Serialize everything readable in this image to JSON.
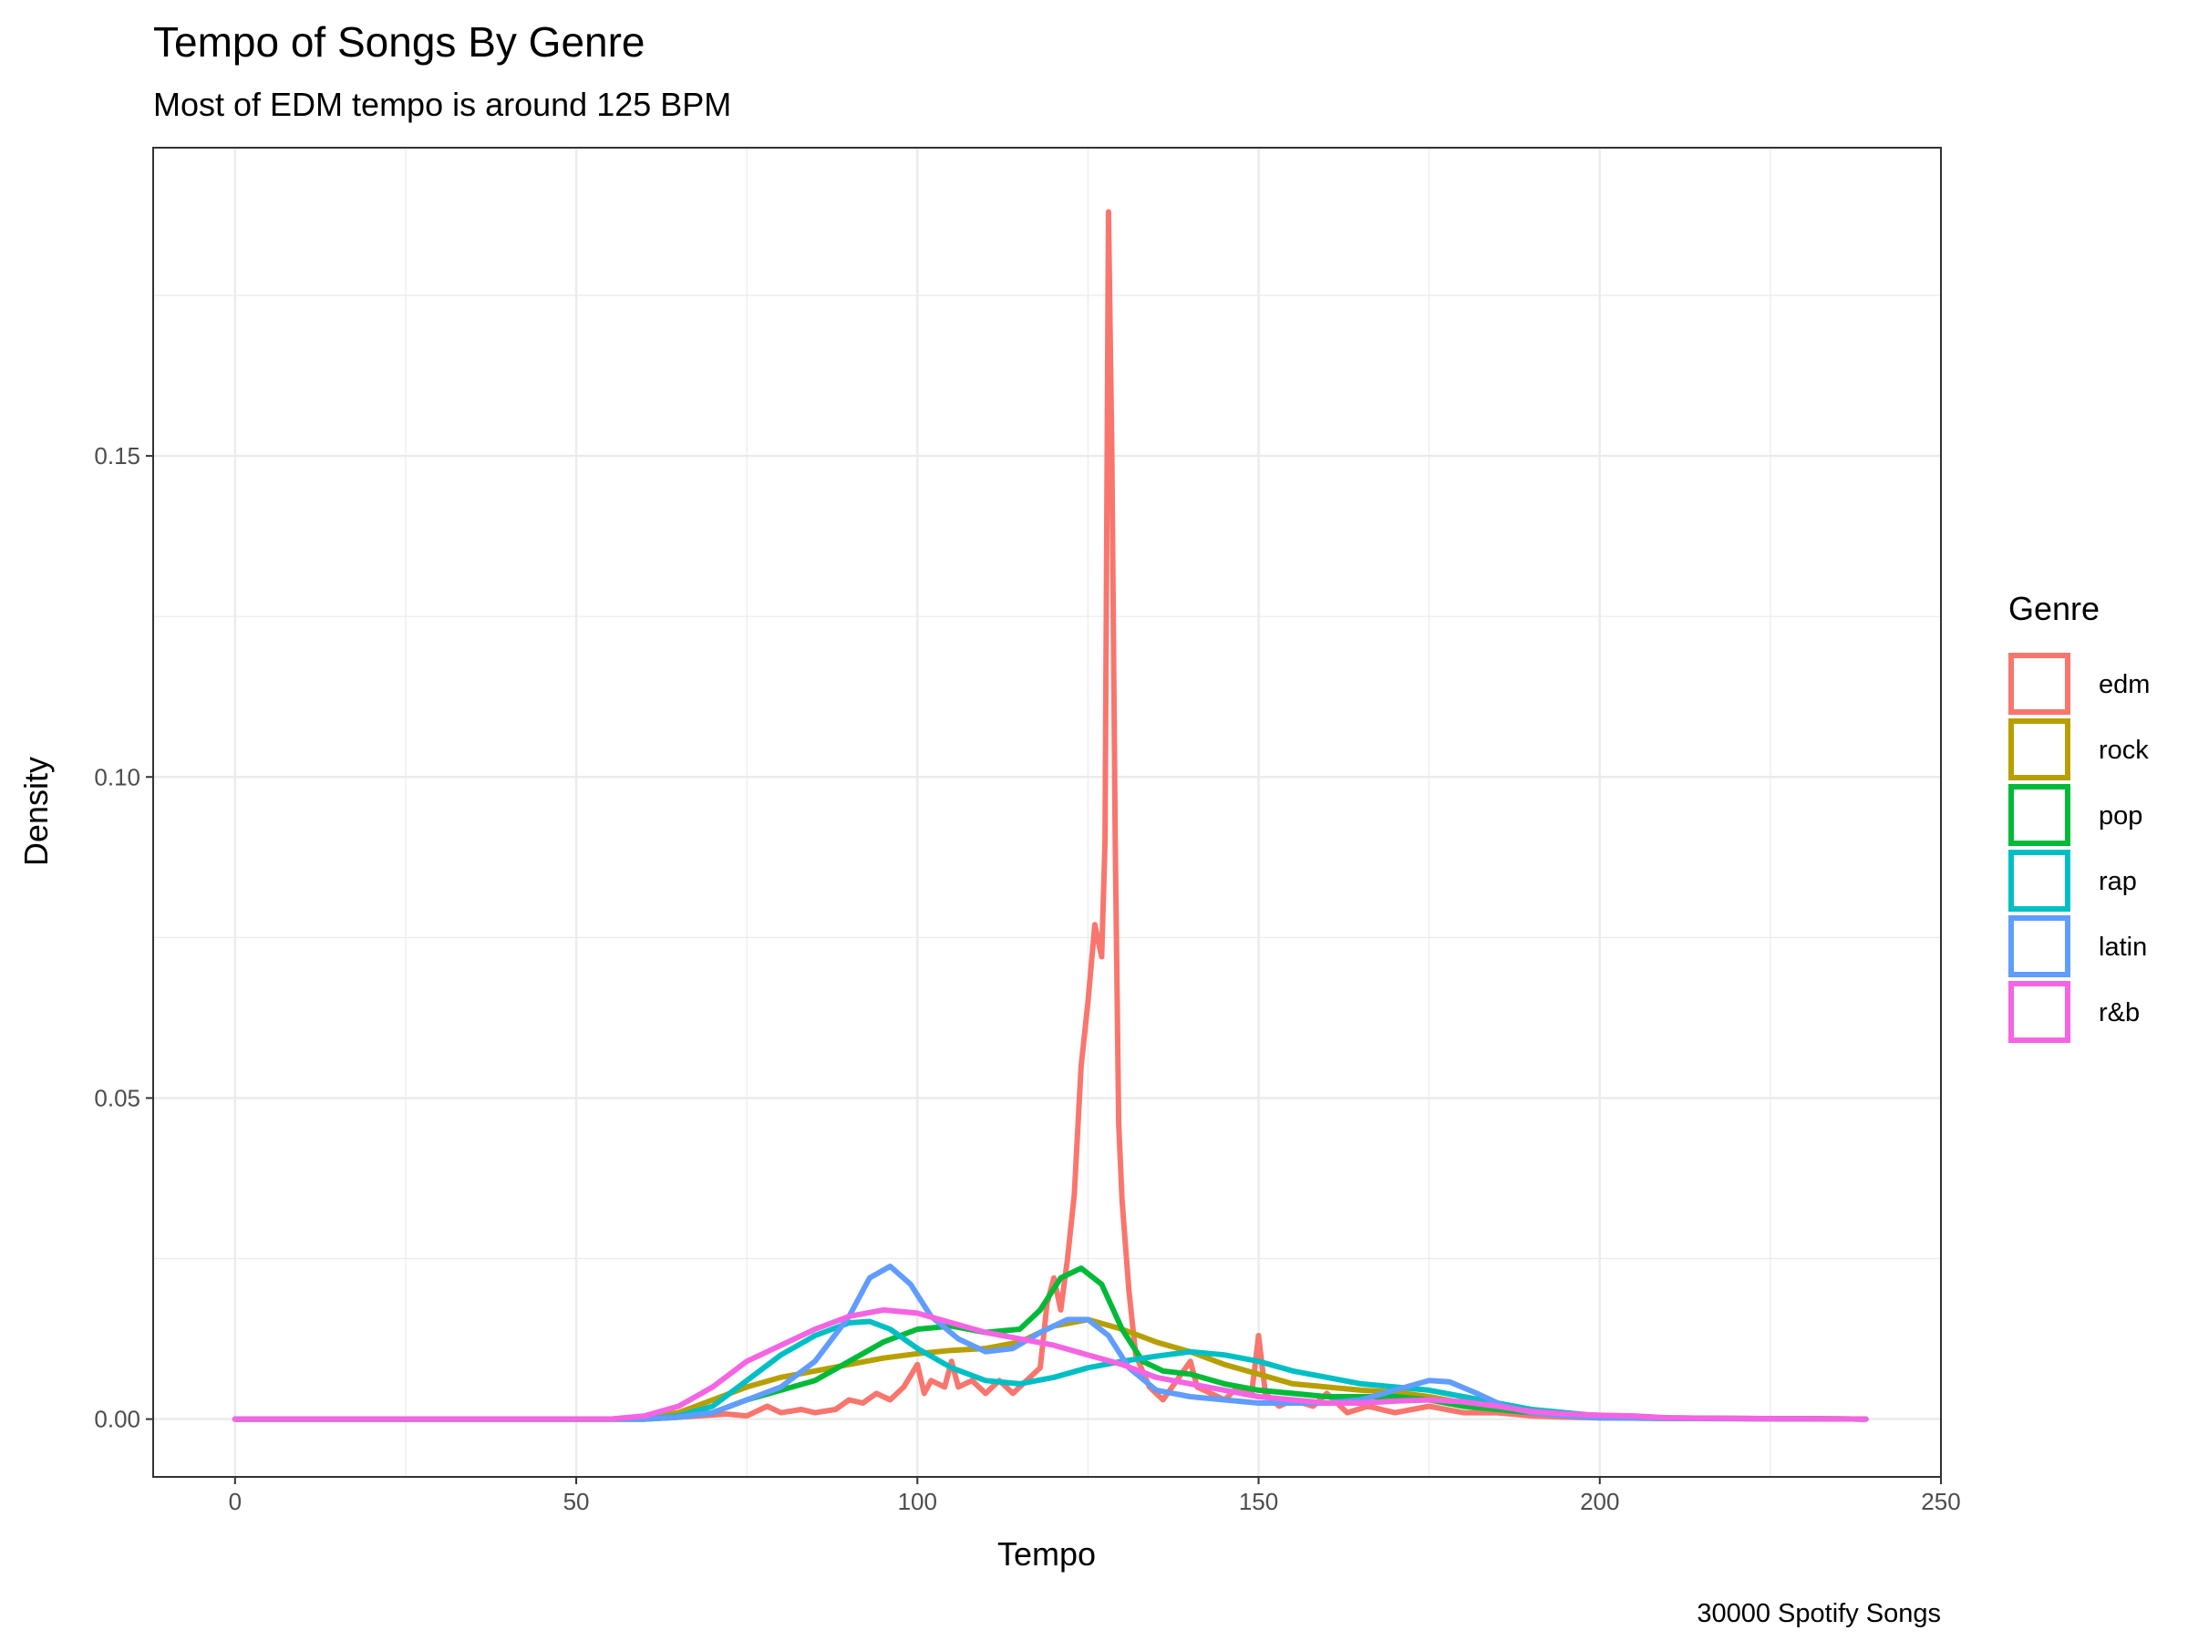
{
  "chart_data": {
    "type": "line",
    "title": "Tempo of Songs By Genre",
    "subtitle": "Most of EDM tempo is around 125 BPM",
    "xlabel": "Tempo",
    "ylabel": "Density",
    "caption": "30000 Spotify Songs",
    "xlim": [
      -12,
      250
    ],
    "ylim": [
      -0.009,
      0.198
    ],
    "x_ticks": [
      0,
      50,
      100,
      150,
      200,
      250
    ],
    "x_tick_labels": [
      "0",
      "50",
      "100",
      "150",
      "200",
      "250"
    ],
    "y_ticks": [
      0.0,
      0.05,
      0.1,
      0.15
    ],
    "y_tick_labels": [
      "0.00",
      "0.05",
      "0.10",
      "0.15"
    ],
    "grid": true,
    "legend": {
      "title": "Genre",
      "position": "right"
    },
    "series": [
      {
        "name": "edm",
        "color": "#F8766D",
        "points": [
          [
            0,
            0
          ],
          [
            60,
            0
          ],
          [
            68,
            0.0005
          ],
          [
            72,
            0.0008
          ],
          [
            75,
            0.0005
          ],
          [
            78,
            0.002
          ],
          [
            80,
            0.001
          ],
          [
            83,
            0.0015
          ],
          [
            85,
            0.001
          ],
          [
            88,
            0.0015
          ],
          [
            90,
            0.003
          ],
          [
            92,
            0.0025
          ],
          [
            94,
            0.004
          ],
          [
            96,
            0.003
          ],
          [
            98,
            0.005
          ],
          [
            100,
            0.0085
          ],
          [
            101,
            0.004
          ],
          [
            102,
            0.006
          ],
          [
            104,
            0.005
          ],
          [
            105,
            0.009
          ],
          [
            106,
            0.005
          ],
          [
            108,
            0.006
          ],
          [
            110,
            0.004
          ],
          [
            112,
            0.006
          ],
          [
            114,
            0.004
          ],
          [
            116,
            0.006
          ],
          [
            118,
            0.008
          ],
          [
            119,
            0.018
          ],
          [
            120,
            0.022
          ],
          [
            121,
            0.017
          ],
          [
            122,
            0.025
          ],
          [
            123,
            0.035
          ],
          [
            124,
            0.055
          ],
          [
            125,
            0.065
          ],
          [
            126,
            0.077
          ],
          [
            127,
            0.072
          ],
          [
            127.5,
            0.09
          ],
          [
            128,
            0.188
          ],
          [
            128.5,
            0.15
          ],
          [
            129,
            0.09
          ],
          [
            129.5,
            0.046
          ],
          [
            130,
            0.034
          ],
          [
            131,
            0.02
          ],
          [
            132,
            0.01
          ],
          [
            134,
            0.005
          ],
          [
            136,
            0.003
          ],
          [
            138,
            0.006
          ],
          [
            140,
            0.009
          ],
          [
            141,
            0.005
          ],
          [
            143,
            0.004
          ],
          [
            145,
            0.003
          ],
          [
            147,
            0.005
          ],
          [
            149,
            0.004
          ],
          [
            150,
            0.013
          ],
          [
            151,
            0.004
          ],
          [
            153,
            0.002
          ],
          [
            155,
            0.003
          ],
          [
            158,
            0.002
          ],
          [
            160,
            0.004
          ],
          [
            163,
            0.001
          ],
          [
            166,
            0.002
          ],
          [
            170,
            0.001
          ],
          [
            175,
            0.002
          ],
          [
            180,
            0.001
          ],
          [
            185,
            0.001
          ],
          [
            190,
            0.0005
          ],
          [
            195,
            0.0003
          ],
          [
            200,
            0.0002
          ],
          [
            210,
            0.0001
          ],
          [
            220,
            0.0001
          ],
          [
            239,
            0
          ]
        ]
      },
      {
        "name": "rock",
        "color": "#B79F00",
        "points": [
          [
            0,
            0
          ],
          [
            55,
            0
          ],
          [
            60,
            0.0003
          ],
          [
            65,
            0.001
          ],
          [
            70,
            0.003
          ],
          [
            75,
            0.005
          ],
          [
            80,
            0.0065
          ],
          [
            85,
            0.0075
          ],
          [
            90,
            0.0085
          ],
          [
            95,
            0.0095
          ],
          [
            100,
            0.0102
          ],
          [
            105,
            0.0107
          ],
          [
            110,
            0.011
          ],
          [
            115,
            0.012
          ],
          [
            120,
            0.0145
          ],
          [
            125,
            0.0155
          ],
          [
            130,
            0.014
          ],
          [
            135,
            0.012
          ],
          [
            140,
            0.0105
          ],
          [
            145,
            0.0085
          ],
          [
            150,
            0.007
          ],
          [
            155,
            0.0055
          ],
          [
            160,
            0.005
          ],
          [
            165,
            0.0045
          ],
          [
            170,
            0.0042
          ],
          [
            175,
            0.0035
          ],
          [
            180,
            0.0025
          ],
          [
            185,
            0.0018
          ],
          [
            190,
            0.0012
          ],
          [
            195,
            0.0008
          ],
          [
            200,
            0.0005
          ],
          [
            210,
            0.0002
          ],
          [
            220,
            0.0001
          ],
          [
            239,
            0
          ]
        ]
      },
      {
        "name": "pop",
        "color": "#00BA38",
        "points": [
          [
            0,
            0
          ],
          [
            60,
            0
          ],
          [
            65,
            0.0003
          ],
          [
            70,
            0.001
          ],
          [
            75,
            0.003
          ],
          [
            80,
            0.0045
          ],
          [
            85,
            0.006
          ],
          [
            90,
            0.009
          ],
          [
            95,
            0.012
          ],
          [
            100,
            0.014
          ],
          [
            105,
            0.0145
          ],
          [
            110,
            0.0135
          ],
          [
            115,
            0.014
          ],
          [
            118,
            0.017
          ],
          [
            121,
            0.022
          ],
          [
            124,
            0.0235
          ],
          [
            127,
            0.021
          ],
          [
            130,
            0.014
          ],
          [
            133,
            0.009
          ],
          [
            136,
            0.0075
          ],
          [
            140,
            0.007
          ],
          [
            145,
            0.0055
          ],
          [
            150,
            0.0045
          ],
          [
            155,
            0.004
          ],
          [
            160,
            0.0035
          ],
          [
            165,
            0.0035
          ],
          [
            170,
            0.0035
          ],
          [
            175,
            0.003
          ],
          [
            180,
            0.002
          ],
          [
            185,
            0.0015
          ],
          [
            190,
            0.001
          ],
          [
            195,
            0.0006
          ],
          [
            200,
            0.0003
          ],
          [
            210,
            0.0001
          ],
          [
            239,
            0
          ]
        ]
      },
      {
        "name": "rap",
        "color": "#00BFC4",
        "points": [
          [
            0,
            0
          ],
          [
            60,
            0
          ],
          [
            65,
            0.0005
          ],
          [
            70,
            0.002
          ],
          [
            75,
            0.006
          ],
          [
            80,
            0.01
          ],
          [
            85,
            0.013
          ],
          [
            90,
            0.015
          ],
          [
            93,
            0.0152
          ],
          [
            96,
            0.014
          ],
          [
            100,
            0.011
          ],
          [
            105,
            0.008
          ],
          [
            110,
            0.006
          ],
          [
            115,
            0.0055
          ],
          [
            120,
            0.0065
          ],
          [
            125,
            0.008
          ],
          [
            130,
            0.009
          ],
          [
            135,
            0.0098
          ],
          [
            140,
            0.0105
          ],
          [
            145,
            0.01
          ],
          [
            150,
            0.009
          ],
          [
            155,
            0.0075
          ],
          [
            160,
            0.0065
          ],
          [
            165,
            0.0055
          ],
          [
            170,
            0.005
          ],
          [
            175,
            0.0045
          ],
          [
            180,
            0.0035
          ],
          [
            185,
            0.0025
          ],
          [
            190,
            0.0015
          ],
          [
            195,
            0.001
          ],
          [
            200,
            0.0005
          ],
          [
            210,
            0.0002
          ],
          [
            220,
            0.0001
          ],
          [
            239,
            0
          ]
        ]
      },
      {
        "name": "latin",
        "color": "#619CFF",
        "points": [
          [
            0,
            0
          ],
          [
            60,
            0
          ],
          [
            65,
            0.0003
          ],
          [
            70,
            0.001
          ],
          [
            75,
            0.003
          ],
          [
            80,
            0.005
          ],
          [
            85,
            0.009
          ],
          [
            90,
            0.016
          ],
          [
            93,
            0.022
          ],
          [
            96,
            0.0238
          ],
          [
            99,
            0.021
          ],
          [
            102,
            0.016
          ],
          [
            106,
            0.0125
          ],
          [
            110,
            0.0105
          ],
          [
            114,
            0.011
          ],
          [
            118,
            0.0135
          ],
          [
            122,
            0.0155
          ],
          [
            125,
            0.0155
          ],
          [
            128,
            0.013
          ],
          [
            131,
            0.008
          ],
          [
            135,
            0.0045
          ],
          [
            140,
            0.0035
          ],
          [
            145,
            0.003
          ],
          [
            150,
            0.0025
          ],
          [
            155,
            0.0025
          ],
          [
            160,
            0.0025
          ],
          [
            165,
            0.003
          ],
          [
            170,
            0.0045
          ],
          [
            175,
            0.006
          ],
          [
            178,
            0.0058
          ],
          [
            182,
            0.004
          ],
          [
            186,
            0.002
          ],
          [
            190,
            0.001
          ],
          [
            195,
            0.0005
          ],
          [
            200,
            0.0002
          ],
          [
            210,
            0.0001
          ],
          [
            239,
            0
          ]
        ]
      },
      {
        "name": "r&b",
        "color": "#F564E3",
        "points": [
          [
            0,
            0
          ],
          [
            55,
            0
          ],
          [
            60,
            0.0005
          ],
          [
            65,
            0.002
          ],
          [
            70,
            0.005
          ],
          [
            75,
            0.009
          ],
          [
            80,
            0.0115
          ],
          [
            85,
            0.014
          ],
          [
            90,
            0.016
          ],
          [
            95,
            0.017
          ],
          [
            100,
            0.0165
          ],
          [
            105,
            0.015
          ],
          [
            110,
            0.0135
          ],
          [
            115,
            0.0125
          ],
          [
            120,
            0.0115
          ],
          [
            125,
            0.01
          ],
          [
            130,
            0.0085
          ],
          [
            135,
            0.0065
          ],
          [
            140,
            0.0055
          ],
          [
            145,
            0.0045
          ],
          [
            150,
            0.0035
          ],
          [
            155,
            0.003
          ],
          [
            160,
            0.0025
          ],
          [
            165,
            0.0025
          ],
          [
            170,
            0.0028
          ],
          [
            175,
            0.003
          ],
          [
            180,
            0.0027
          ],
          [
            185,
            0.002
          ],
          [
            190,
            0.0012
          ],
          [
            195,
            0.0008
          ],
          [
            200,
            0.0006
          ],
          [
            205,
            0.0005
          ],
          [
            210,
            0.0002
          ],
          [
            220,
            0.0001
          ],
          [
            239,
            0
          ]
        ]
      }
    ]
  }
}
